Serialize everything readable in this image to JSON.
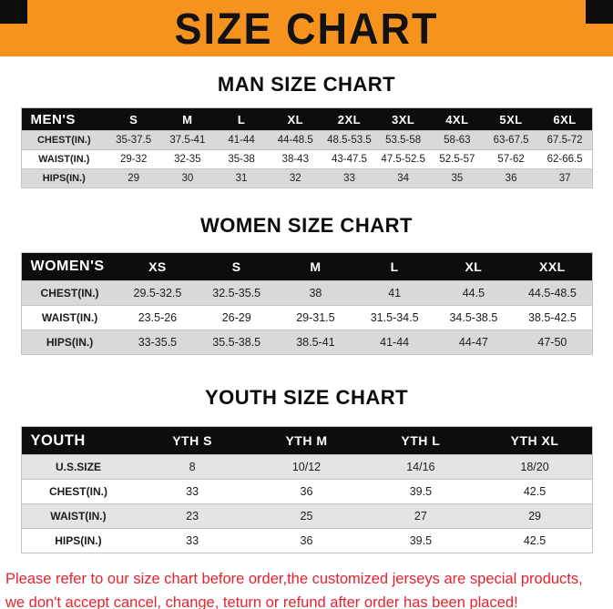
{
  "banner": {
    "title": "SIZE CHART",
    "background_color": "#f6921e",
    "corner_color": "#0d0d0d"
  },
  "colors": {
    "table_header_bg": "#0d0d0d",
    "table_header_text": "#ffffff",
    "row_shaded": "#d9d9d9",
    "notice_text": "#e8212e"
  },
  "sections": [
    {
      "heading": "MAN SIZE CHART",
      "table": {
        "header": [
          "MEN'S",
          "S",
          "M",
          "L",
          "XL",
          "2XL",
          "3XL",
          "4XL",
          "5XL",
          "6XL"
        ],
        "rows": [
          [
            "CHEST(IN.)",
            "35-37.5",
            "37.5-41",
            "41-44",
            "44-48.5",
            "48.5-53.5",
            "53.5-58",
            "58-63",
            "63-67.5",
            "67.5-72"
          ],
          [
            "WAIST(IN.)",
            "29-32",
            "32-35",
            "35-38",
            "38-43",
            "43-47.5",
            "47.5-52.5",
            "52.5-57",
            "57-62",
            "62-66.5"
          ],
          [
            "HIPS(IN.)",
            "29",
            "30",
            "31",
            "32",
            "33",
            "34",
            "35",
            "36",
            "37"
          ]
        ]
      }
    },
    {
      "heading": "WOMEN SIZE CHART",
      "table": {
        "header": [
          "WOMEN'S",
          "XS",
          "S",
          "M",
          "L",
          "XL",
          "XXL"
        ],
        "rows": [
          [
            "CHEST(IN.)",
            "29.5-32.5",
            "32.5-35.5",
            "38",
            "41",
            "44.5",
            "44.5-48.5"
          ],
          [
            "WAIST(IN.)",
            "23.5-26",
            "26-29",
            "29-31.5",
            "31.5-34.5",
            "34.5-38.5",
            "38.5-42.5"
          ],
          [
            "HIPS(IN.)",
            "33-35.5",
            "35.5-38.5",
            "38.5-41",
            "41-44",
            "44-47",
            "47-50"
          ]
        ]
      }
    },
    {
      "heading": "YOUTH SIZE CHART",
      "table": {
        "header": [
          "YOUTH",
          "YTH S",
          "YTH M",
          "YTH L",
          "YTH XL"
        ],
        "rows": [
          [
            "U.S.SIZE",
            "8",
            "10/12",
            "14/16",
            "18/20"
          ],
          [
            "CHEST(IN.)",
            "33",
            "36",
            "39.5",
            "42.5"
          ],
          [
            "WAIST(IN.)",
            "23",
            "25",
            "27",
            "29"
          ],
          [
            "HIPS(IN.)",
            "33",
            "36",
            "39.5",
            "42.5"
          ]
        ]
      }
    }
  ],
  "footer": {
    "line1": "Please refer to our size chart before order,the customized jerseys are special products,",
    "line2": "we don't accept cancel, change, teturn or refund after order has been placed!"
  }
}
